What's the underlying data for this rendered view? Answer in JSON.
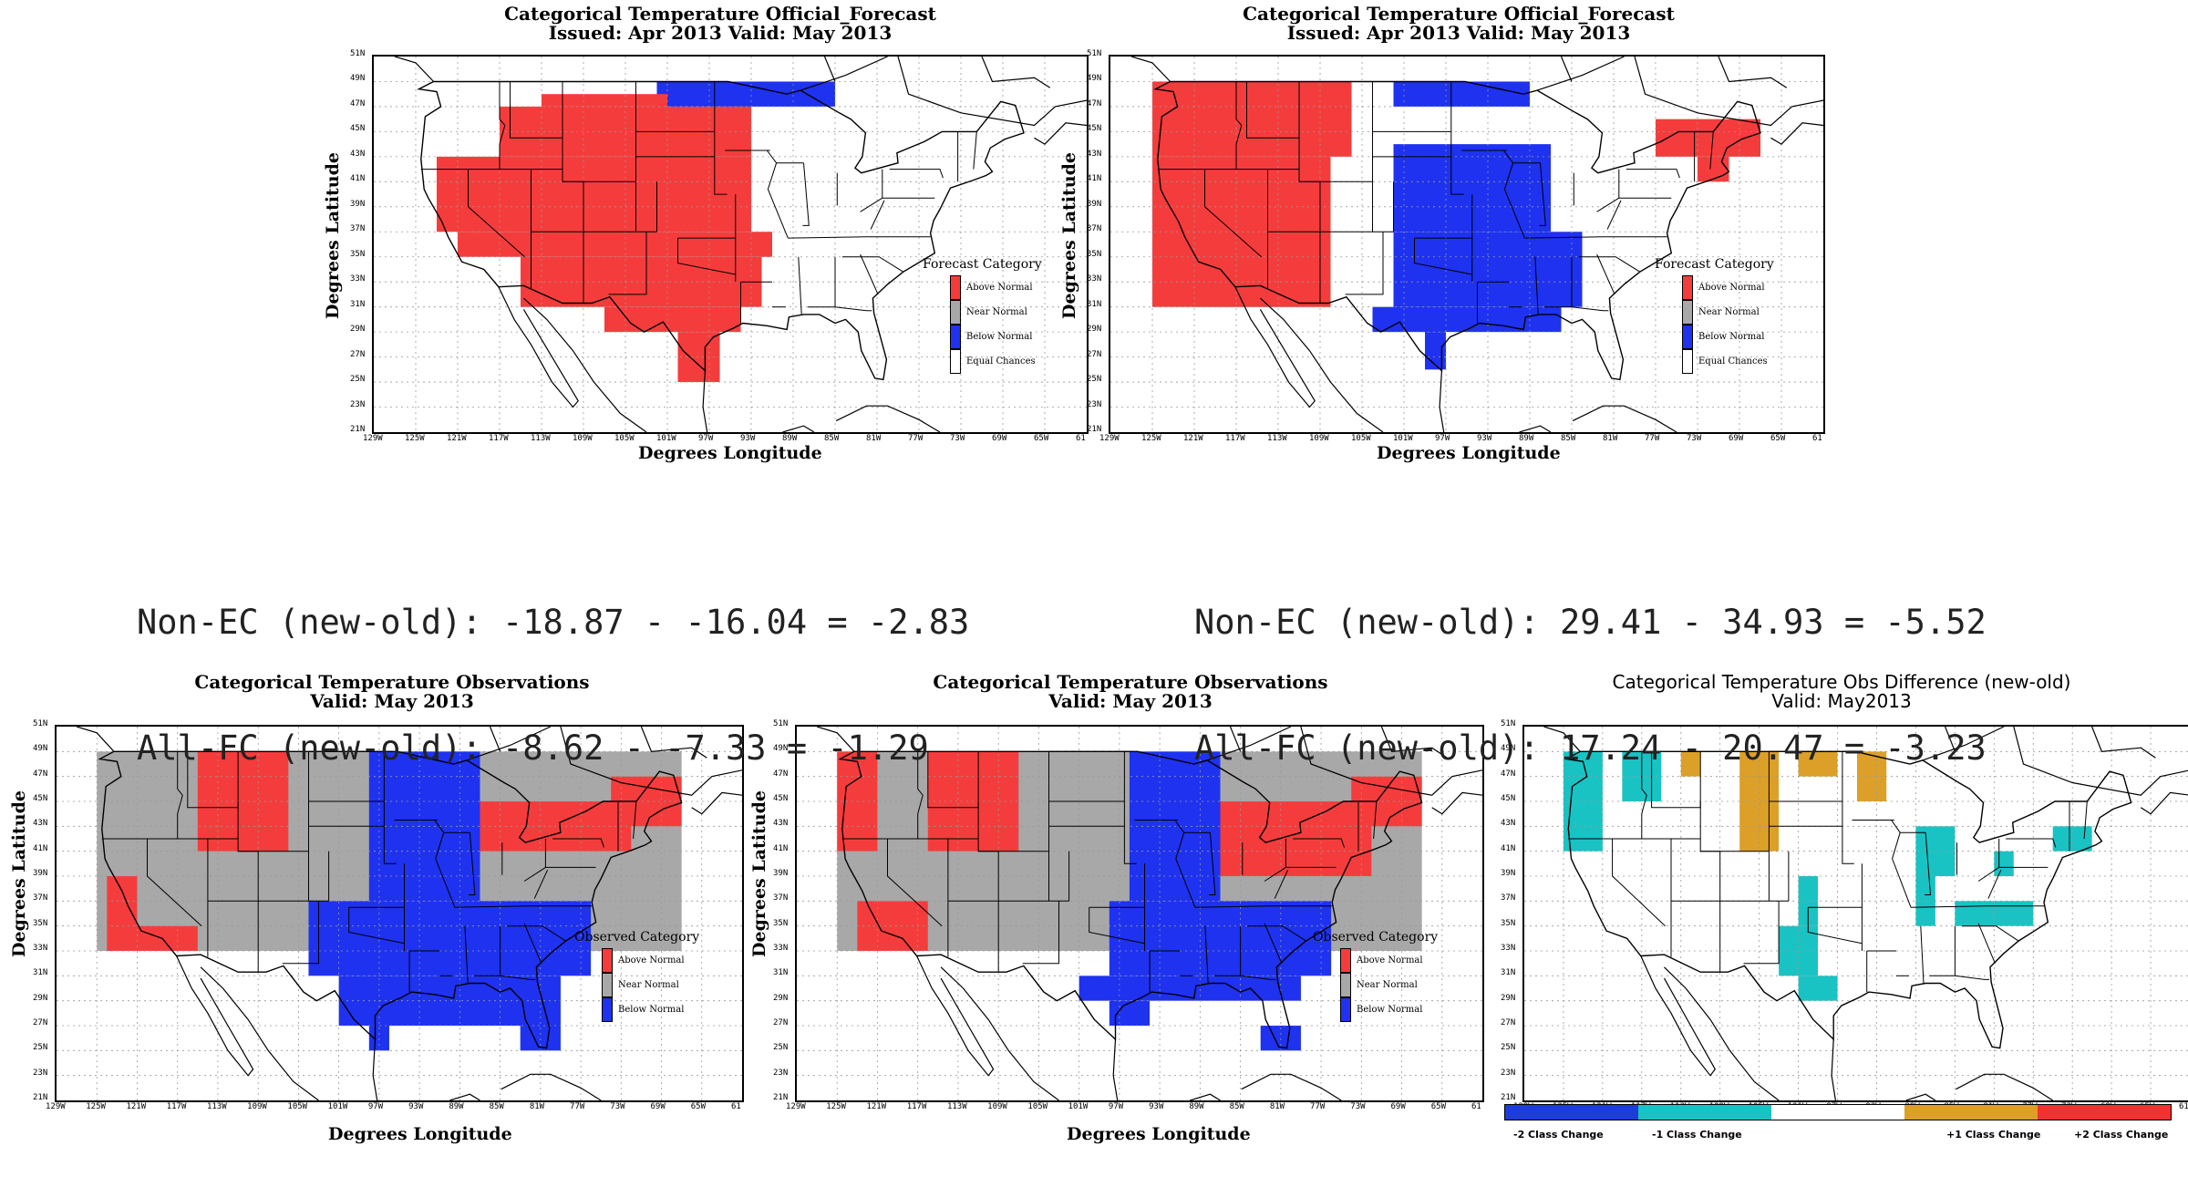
{
  "panels": [
    {
      "id": "p1",
      "title_line1": "Categorical Temperature Official_Forecast",
      "title_line2": "Issued: Apr 2013 Valid: May 2013",
      "ylabel": "Degrees Latitude",
      "xlabel": "Degrees Longitude",
      "legend": {
        "title": "Forecast Category",
        "items": [
          "Above Normal",
          "Near Normal",
          "Below Normal",
          "Equal Chances"
        ]
      },
      "cells": [
        {
          "cat": "below",
          "lon": [
            -102,
            -85
          ],
          "lat": [
            47,
            49
          ]
        },
        {
          "cat": "above",
          "lon": [
            -113,
            -101
          ],
          "lat": [
            47,
            48
          ]
        },
        {
          "cat": "above",
          "lon": [
            -117,
            -93
          ],
          "lat": [
            43,
            47
          ]
        },
        {
          "cat": "above",
          "lon": [
            -123,
            -93
          ],
          "lat": [
            37,
            43
          ]
        },
        {
          "cat": "above",
          "lon": [
            -121,
            -91
          ],
          "lat": [
            35,
            37
          ]
        },
        {
          "cat": "above",
          "lon": [
            -115,
            -92
          ],
          "lat": [
            31,
            35
          ]
        },
        {
          "cat": "above",
          "lon": [
            -107,
            -94
          ],
          "lat": [
            29,
            31
          ]
        },
        {
          "cat": "above",
          "lon": [
            -100,
            -96
          ],
          "lat": [
            25,
            29
          ]
        }
      ]
    },
    {
      "id": "p2",
      "title_line1": "Categorical Temperature Official_Forecast",
      "title_line2": "Issued: Apr 2013 Valid: May 2013",
      "ylabel": "Degrees Latitude",
      "xlabel": "Degrees Longitude",
      "legend": {
        "title": "Forecast Category",
        "items": [
          "Above Normal",
          "Near Normal",
          "Below Normal",
          "Equal Chances"
        ]
      },
      "cells": [
        {
          "cat": "below",
          "lon": [
            -102,
            -89
          ],
          "lat": [
            47,
            49
          ]
        },
        {
          "cat": "above",
          "lon": [
            -125,
            -106
          ],
          "lat": [
            43,
            49
          ]
        },
        {
          "cat": "above",
          "lon": [
            -125,
            -108
          ],
          "lat": [
            31,
            43
          ]
        },
        {
          "cat": "above",
          "lon": [
            -121,
            -108
          ],
          "lat": [
            31,
            35
          ]
        },
        {
          "cat": "above",
          "lon": [
            -77,
            -67
          ],
          "lat": [
            43,
            46
          ]
        },
        {
          "cat": "above",
          "lon": [
            -73,
            -70
          ],
          "lat": [
            41,
            43
          ]
        },
        {
          "cat": "below",
          "lon": [
            -102,
            -87
          ],
          "lat": [
            37,
            44
          ]
        },
        {
          "cat": "below",
          "lon": [
            -102,
            -84
          ],
          "lat": [
            31,
            37
          ]
        },
        {
          "cat": "below",
          "lon": [
            -104,
            -86
          ],
          "lat": [
            29,
            31
          ]
        },
        {
          "cat": "below",
          "lon": [
            -99,
            -97
          ],
          "lat": [
            26,
            29
          ]
        }
      ]
    },
    {
      "id": "p3",
      "title_line1": "Categorical Temperature Observations",
      "title_line2": "Valid: May 2013",
      "ylabel": "Degrees Latitude",
      "xlabel": "Degrees Longitude",
      "legend": {
        "title": "Observed Category",
        "items": [
          "Above Normal",
          "Near Normal",
          "Below Normal"
        ]
      },
      "cells": [
        {
          "cat": "near",
          "lon": [
            -125,
            -67
          ],
          "lat": [
            33,
            49
          ]
        },
        {
          "cat": "above",
          "lon": [
            -115,
            -106
          ],
          "lat": [
            41,
            49
          ]
        },
        {
          "cat": "above",
          "lon": [
            -124,
            -121
          ],
          "lat": [
            33,
            39
          ]
        },
        {
          "cat": "above",
          "lon": [
            -121,
            -115
          ],
          "lat": [
            33,
            35
          ]
        },
        {
          "cat": "above",
          "lon": [
            -87,
            -72
          ],
          "lat": [
            41,
            45
          ]
        },
        {
          "cat": "above",
          "lon": [
            -74,
            -67
          ],
          "lat": [
            43,
            47
          ]
        },
        {
          "cat": "below",
          "lon": [
            -98,
            -87
          ],
          "lat": [
            37,
            49
          ]
        },
        {
          "cat": "below",
          "lon": [
            -104,
            -76
          ],
          "lat": [
            31,
            37
          ]
        },
        {
          "cat": "below",
          "lon": [
            -101,
            -79
          ],
          "lat": [
            27,
            31
          ]
        },
        {
          "cat": "below",
          "lon": [
            -98,
            -96
          ],
          "lat": [
            25,
            27
          ]
        },
        {
          "cat": "below",
          "lon": [
            -83,
            -79
          ],
          "lat": [
            25,
            27
          ]
        }
      ]
    },
    {
      "id": "p4",
      "title_line1": "Categorical Temperature Observations",
      "title_line2": "Valid: May 2013",
      "ylabel": "Degrees Latitude",
      "xlabel": "Degrees Longitude",
      "legend": {
        "title": "Observed Category",
        "items": [
          "Above Normal",
          "Near Normal",
          "Below Normal"
        ]
      },
      "cells": [
        {
          "cat": "near",
          "lon": [
            -125,
            -67
          ],
          "lat": [
            33,
            49
          ]
        },
        {
          "cat": "above",
          "lon": [
            -116,
            -107
          ],
          "lat": [
            41,
            49
          ]
        },
        {
          "cat": "above",
          "lon": [
            -125,
            -121
          ],
          "lat": [
            41,
            49
          ]
        },
        {
          "cat": "above",
          "lon": [
            -123,
            -116
          ],
          "lat": [
            33,
            37
          ]
        },
        {
          "cat": "above",
          "lon": [
            -89,
            -72
          ],
          "lat": [
            39,
            45
          ]
        },
        {
          "cat": "above",
          "lon": [
            -74,
            -67
          ],
          "lat": [
            43,
            47
          ]
        },
        {
          "cat": "below",
          "lon": [
            -96,
            -87
          ],
          "lat": [
            37,
            49
          ]
        },
        {
          "cat": "below",
          "lon": [
            -98,
            -76
          ],
          "lat": [
            31,
            37
          ]
        },
        {
          "cat": "below",
          "lon": [
            -101,
            -79
          ],
          "lat": [
            29,
            31
          ]
        },
        {
          "cat": "below",
          "lon": [
            -98,
            -94
          ],
          "lat": [
            27,
            29
          ]
        },
        {
          "cat": "below",
          "lon": [
            -83,
            -79
          ],
          "lat": [
            25,
            27
          ]
        }
      ]
    },
    {
      "id": "p5",
      "title_line1": "Categorical Temperature Obs Difference (new-old)",
      "title_line2": "Valid: May2013",
      "ylabel": "",
      "xlabel": "",
      "legend": null,
      "cells": [
        {
          "cat": "m1",
          "lon": [
            -125,
            -121
          ],
          "lat": [
            41,
            49
          ]
        },
        {
          "cat": "m1",
          "lon": [
            -119,
            -115
          ],
          "lat": [
            45,
            49
          ]
        },
        {
          "cat": "p1",
          "lon": [
            -113,
            -111
          ],
          "lat": [
            47,
            49
          ]
        },
        {
          "cat": "p1",
          "lon": [
            -107,
            -103
          ],
          "lat": [
            41,
            49
          ]
        },
        {
          "cat": "p1",
          "lon": [
            -101,
            -97
          ],
          "lat": [
            47,
            49
          ]
        },
        {
          "cat": "p1",
          "lon": [
            -95,
            -92
          ],
          "lat": [
            45,
            49
          ]
        },
        {
          "cat": "m1",
          "lon": [
            -101,
            -99
          ],
          "lat": [
            35,
            39
          ]
        },
        {
          "cat": "m1",
          "lon": [
            -103,
            -99
          ],
          "lat": [
            31,
            35
          ]
        },
        {
          "cat": "m1",
          "lon": [
            -101,
            -97
          ],
          "lat": [
            29,
            31
          ]
        },
        {
          "cat": "m1",
          "lon": [
            -89,
            -85
          ],
          "lat": [
            39,
            43
          ]
        },
        {
          "cat": "m1",
          "lon": [
            -89,
            -87
          ],
          "lat": [
            35,
            39
          ]
        },
        {
          "cat": "m1",
          "lon": [
            -85,
            -77
          ],
          "lat": [
            35,
            37
          ]
        },
        {
          "cat": "m1",
          "lon": [
            -81,
            -79
          ],
          "lat": [
            39,
            41
          ]
        },
        {
          "cat": "m1",
          "lon": [
            -75,
            -71
          ],
          "lat": [
            41,
            43
          ]
        }
      ]
    }
  ],
  "axes": {
    "lat_labels": [
      "51N",
      "49N",
      "47N",
      "45N",
      "43N",
      "41N",
      "39N",
      "37N",
      "35N",
      "33N",
      "31N",
      "29N",
      "27N",
      "25N",
      "23N",
      "21N"
    ],
    "lon_labels": [
      "129W",
      "125W",
      "121W",
      "117W",
      "113W",
      "109W",
      "105W",
      "101W",
      "97W",
      "93W",
      "89W",
      "85W",
      "81W",
      "77W",
      "73W",
      "69W",
      "65W",
      "61"
    ]
  },
  "stats": {
    "left_line1": "Non-EC (new-old): -18.87 - -16.04 = -2.83",
    "left_line2": "All-FC (new-old): -8.62 - -7.33 = -1.29",
    "right_line1": "Non-EC (new-old): 29.41 - 34.93 = -5.52",
    "right_line2": "All-FC (new-old): 17.24 - 20.47 = -3.23"
  },
  "diff_legend": [
    "-2 Class Change",
    "-1 Class Change",
    "+1 Class Change",
    "+2 Class Change"
  ],
  "colors": {
    "above": "#f53c3c",
    "near": "#a8a8a8",
    "below": "#1e32f0",
    "m2": "#1e3cd8",
    "m1": "#19c3c3",
    "p1": "#dca028",
    "p2": "#f03232",
    "white": "#ffffff"
  }
}
